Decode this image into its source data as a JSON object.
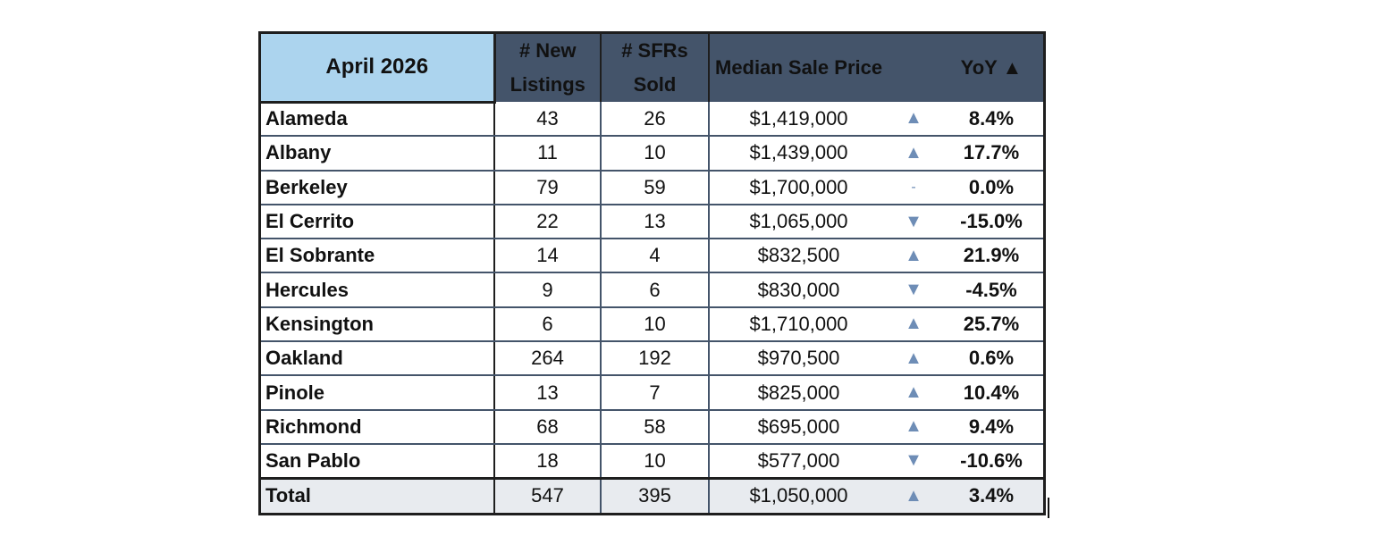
{
  "header": {
    "period": "April 2026",
    "new_listings_line1": "# New",
    "new_listings_line2": "Listings",
    "sfrs_sold_line1": "# SFRs",
    "sfrs_sold_line2": "Sold",
    "median_sale_price": "Median Sale Price",
    "yoy": "YoY ▲"
  },
  "rows": [
    {
      "city": "Alameda",
      "new_listings": "43",
      "sfrs_sold": "26",
      "median_price": "$1,419,000",
      "trend": "up",
      "trend_glyph": "▲",
      "yoy": "8.4%"
    },
    {
      "city": "Albany",
      "new_listings": "11",
      "sfrs_sold": "10",
      "median_price": "$1,439,000",
      "trend": "up",
      "trend_glyph": "▲",
      "yoy": "17.7%"
    },
    {
      "city": "Berkeley",
      "new_listings": "79",
      "sfrs_sold": "59",
      "median_price": "$1,700,000",
      "trend": "flat",
      "trend_glyph": "-",
      "yoy": "0.0%"
    },
    {
      "city": "El Cerrito",
      "new_listings": "22",
      "sfrs_sold": "13",
      "median_price": "$1,065,000",
      "trend": "down",
      "trend_glyph": "▼",
      "yoy": "-15.0%"
    },
    {
      "city": "El Sobrante",
      "new_listings": "14",
      "sfrs_sold": "4",
      "median_price": "$832,500",
      "trend": "up",
      "trend_glyph": "▲",
      "yoy": "21.9%"
    },
    {
      "city": "Hercules",
      "new_listings": "9",
      "sfrs_sold": "6",
      "median_price": "$830,000",
      "trend": "down",
      "trend_glyph": "▼",
      "yoy": "-4.5%"
    },
    {
      "city": "Kensington",
      "new_listings": "6",
      "sfrs_sold": "10",
      "median_price": "$1,710,000",
      "trend": "up",
      "trend_glyph": "▲",
      "yoy": "25.7%"
    },
    {
      "city": "Oakland",
      "new_listings": "264",
      "sfrs_sold": "192",
      "median_price": "$970,500",
      "trend": "up",
      "trend_glyph": "▲",
      "yoy": "0.6%"
    },
    {
      "city": "Pinole",
      "new_listings": "13",
      "sfrs_sold": "7",
      "median_price": "$825,000",
      "trend": "up",
      "trend_glyph": "▲",
      "yoy": "10.4%"
    },
    {
      "city": "Richmond",
      "new_listings": "68",
      "sfrs_sold": "58",
      "median_price": "$695,000",
      "trend": "up",
      "trend_glyph": "▲",
      "yoy": "9.4%"
    },
    {
      "city": "San Pablo",
      "new_listings": "18",
      "sfrs_sold": "10",
      "median_price": "$577,000",
      "trend": "down",
      "trend_glyph": "▼",
      "yoy": "-10.6%"
    }
  ],
  "total": {
    "city": "Total",
    "new_listings": "547",
    "sfrs_sold": "395",
    "median_price": "$1,050,000",
    "trend": "up",
    "trend_glyph": "▲",
    "yoy": "3.4%"
  },
  "colors": {
    "header_bg": "#44546a",
    "period_bg": "#acd4ee",
    "trend_arrow": "#6e8db6",
    "total_row_bg": "#e8ebef"
  }
}
